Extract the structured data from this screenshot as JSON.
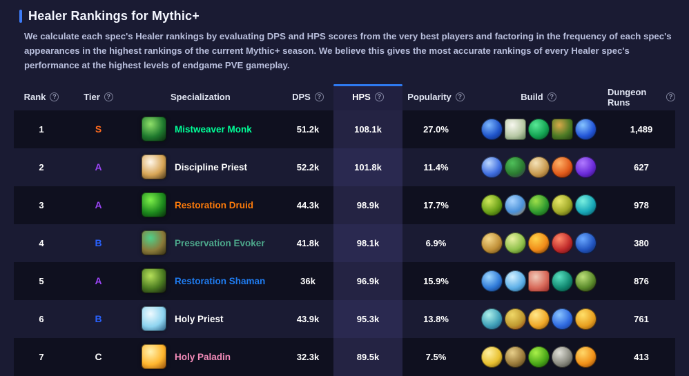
{
  "icons": {
    "help": "?"
  },
  "header": {
    "title": "Healer Rankings for Mythic+",
    "description": "We calculate each spec's Healer rankings by evaluating DPS and HPS scores from the very best players and factoring in the frequency of each spec's appearances in the highest rankings of the current Mythic+ season. We believe this gives the most accurate rankings of every Healer spec's performance at the highest levels of endgame PVE gameplay.",
    "accent_color": "#3d7bf7"
  },
  "table": {
    "columns": [
      {
        "label": "Rank",
        "help": true
      },
      {
        "label": "Tier",
        "help": true
      },
      {
        "label": "Specialization",
        "help": false
      },
      {
        "label": "DPS",
        "help": true
      },
      {
        "label": "HPS",
        "help": true,
        "active": true
      },
      {
        "label": "Popularity",
        "help": true
      },
      {
        "label": "Build",
        "help": true
      },
      {
        "label": "Dungeon Runs",
        "help": true
      }
    ],
    "active_sort_color": "#2e7af0",
    "tier_colors": {
      "S": "#ff6b1e",
      "A": "#9b45f5",
      "B": "#2962ff",
      "C": "#ffffff"
    },
    "rows": [
      {
        "rank": "1",
        "tier": "S",
        "spec": "Mistweaver Monk",
        "spec_color": "#00ff98",
        "spec_icon": {
          "name": "mistweaver-monk-spec-icon",
          "colors": [
            "#8fe06a",
            "#1f7a2e",
            "#07240d"
          ]
        },
        "dps": "51.2k",
        "hps": "108.1k",
        "popularity": "27.0%",
        "runs": "1,489",
        "build_icons": [
          {
            "name": "blue-burst-icon",
            "colors": [
              "#7db8ff",
              "#1f54c9",
              "#0a1c52"
            ],
            "shape": "circle"
          },
          {
            "name": "white-scroll-icon",
            "colors": [
              "#f7f7ef",
              "#b9c9a6",
              "#51714a"
            ],
            "shape": "square"
          },
          {
            "name": "green-swirl-icon",
            "colors": [
              "#58e896",
              "#13a352",
              "#05341c"
            ],
            "shape": "circle"
          },
          {
            "name": "jade-serpent-statue-icon",
            "colors": [
              "#d8a949",
              "#4c7a25",
              "#1e3310"
            ],
            "shape": "square"
          },
          {
            "name": "blue-wind-icon",
            "colors": [
              "#86c4ff",
              "#2356d8",
              "#071a4e"
            ],
            "shape": "circle"
          }
        ]
      },
      {
        "rank": "2",
        "tier": "A",
        "spec": "Discipline Priest",
        "spec_color": "#ffffff",
        "spec_icon": {
          "name": "discipline-priest-spec-icon",
          "colors": [
            "#fff7ea",
            "#d7a556",
            "#3a2a12"
          ]
        },
        "dps": "52.2k",
        "hps": "101.8k",
        "popularity": "11.4%",
        "runs": "627",
        "build_icons": [
          {
            "name": "blue-angel-icon",
            "colors": [
              "#bcd8ff",
              "#3f6ee0",
              "#14245e"
            ],
            "shape": "circle"
          },
          {
            "name": "green-purple-orbit-icon",
            "colors": [
              "#4fc05a",
              "#2a7a30",
              "#401a5e"
            ],
            "shape": "circle"
          },
          {
            "name": "golden-smoke-icon",
            "colors": [
              "#f5e3b8",
              "#c89a50",
              "#5e3a14"
            ],
            "shape": "circle"
          },
          {
            "name": "orange-hand-icon",
            "colors": [
              "#ffb066",
              "#e05a1a",
              "#5a1505"
            ],
            "shape": "circle"
          },
          {
            "name": "purple-fist-icon",
            "colors": [
              "#b07aff",
              "#6a2ad8",
              "#1e0a4a"
            ],
            "shape": "circle"
          }
        ]
      },
      {
        "rank": "3",
        "tier": "A",
        "spec": "Restoration Druid",
        "spec_color": "#ff7c0a",
        "spec_icon": {
          "name": "restoration-druid-spec-icon",
          "colors": [
            "#7df04a",
            "#1d8a1d",
            "#06240a"
          ]
        },
        "dps": "44.3k",
        "hps": "98.9k",
        "popularity": "17.7%",
        "runs": "978",
        "build_icons": [
          {
            "name": "green-sprout-icon",
            "colors": [
              "#cfe85a",
              "#6aa018",
              "#1a3505"
            ],
            "shape": "circle"
          },
          {
            "name": "frost-bloom-icon",
            "colors": [
              "#a8d4ff",
              "#4a90d8",
              "#b87828"
            ],
            "shape": "circle"
          },
          {
            "name": "green-seed-icon",
            "colors": [
              "#9fe04a",
              "#2f9a2f",
              "#0d3a0d"
            ],
            "shape": "circle"
          },
          {
            "name": "yellow-bloom-icon",
            "colors": [
              "#e8e86a",
              "#a0a828",
              "#2a2e08"
            ],
            "shape": "circle"
          },
          {
            "name": "teal-leaf-icon",
            "colors": [
              "#7af0e0",
              "#18a8b8",
              "#083a4a"
            ],
            "shape": "circle"
          }
        ]
      },
      {
        "rank": "4",
        "tier": "B",
        "spec": "Preservation Evoker",
        "spec_color": "#4da98c",
        "spec_icon": {
          "name": "preservation-evoker-spec-icon",
          "colors": [
            "#4fd08a",
            "#8a7a3a",
            "#2e2810"
          ]
        },
        "dps": "41.8k",
        "hps": "98.1k",
        "popularity": "6.9%",
        "runs": "380",
        "build_icons": [
          {
            "name": "golden-orbs-icon",
            "colors": [
              "#f5d88a",
              "#c09038",
              "#4a3310"
            ],
            "shape": "circle"
          },
          {
            "name": "green-ring-icon",
            "colors": [
              "#e8f0a0",
              "#8fc04a",
              "#23400f"
            ],
            "shape": "circle"
          },
          {
            "name": "flame-icon",
            "colors": [
              "#ffd24a",
              "#f08a18",
              "#301505"
            ],
            "shape": "circle"
          },
          {
            "name": "red-claw-orb-icon",
            "colors": [
              "#ff8a6a",
              "#c02a2a",
              "#400a14"
            ],
            "shape": "circle"
          },
          {
            "name": "blue-flame-icon",
            "colors": [
              "#6aa8ff",
              "#2255c0",
              "#091a44"
            ],
            "shape": "circle"
          }
        ]
      },
      {
        "rank": "5",
        "tier": "A",
        "spec": "Restoration Shaman",
        "spec_color": "#1f7cf0",
        "spec_icon": {
          "name": "restoration-shaman-spec-icon",
          "colors": [
            "#b6e05a",
            "#4a7a20",
            "#101010"
          ]
        },
        "dps": "36k",
        "hps": "96.9k",
        "popularity": "15.9%",
        "runs": "876",
        "build_icons": [
          {
            "name": "blue-spiral-icon",
            "colors": [
              "#9fd8ff",
              "#2f7ad8",
              "#0a2050"
            ],
            "shape": "circle"
          },
          {
            "name": "water-wave-icon",
            "colors": [
              "#d2f0ff",
              "#5fb0e8",
              "#15496e"
            ],
            "shape": "circle"
          },
          {
            "name": "red-figure-icon",
            "colors": [
              "#f0cab8",
              "#d86a5a",
              "#8a2020"
            ],
            "shape": "square"
          },
          {
            "name": "teal-vortex-icon",
            "colors": [
              "#5ae0c0",
              "#128a72",
              "#03302a"
            ],
            "shape": "circle"
          },
          {
            "name": "green-blade-icon",
            "colors": [
              "#bde07a",
              "#5a8a2a",
              "#141408"
            ],
            "shape": "circle"
          }
        ]
      },
      {
        "rank": "6",
        "tier": "B",
        "spec": "Holy Priest",
        "spec_color": "#ffffff",
        "spec_icon": {
          "name": "holy-priest-spec-icon",
          "colors": [
            "#eefaff",
            "#8ed4f0",
            "#23557a"
          ]
        },
        "dps": "43.9k",
        "hps": "95.3k",
        "popularity": "13.8%",
        "runs": "761",
        "build_icons": [
          {
            "name": "teal-crystal-icon",
            "colors": [
              "#aef0ea",
              "#3fa0b8",
              "#1a3a66"
            ],
            "shape": "circle"
          },
          {
            "name": "golden-amulet-icon",
            "colors": [
              "#f0d868",
              "#c09a30",
              "#7a1e14"
            ],
            "shape": "circle"
          },
          {
            "name": "golden-burst-icon",
            "colors": [
              "#ffe88a",
              "#f0a828",
              "#6a3a08"
            ],
            "shape": "circle"
          },
          {
            "name": "blue-orbs-icon",
            "colors": [
              "#8ac4ff",
              "#2f6ae0",
              "#122a70"
            ],
            "shape": "circle"
          },
          {
            "name": "golden-kneel-icon",
            "colors": [
              "#ffe06a",
              "#e8a020",
              "#6e3a08"
            ],
            "shape": "circle"
          }
        ]
      },
      {
        "rank": "7",
        "tier": "C",
        "spec": "Holy Paladin",
        "spec_color": "#f48cba",
        "spec_icon": {
          "name": "holy-paladin-spec-icon",
          "colors": [
            "#fff2b0",
            "#ffb62e",
            "#8a4508"
          ]
        },
        "dps": "32.3k",
        "hps": "89.5k",
        "popularity": "7.5%",
        "runs": "413",
        "build_icons": [
          {
            "name": "radiant-burst-icon",
            "colors": [
              "#fff0a0",
              "#e8c030",
              "#5e4408"
            ],
            "shape": "circle"
          },
          {
            "name": "golden-statue-icon",
            "colors": [
              "#e8cf8a",
              "#9a7a3a",
              "#2e2410"
            ],
            "shape": "circle"
          },
          {
            "name": "green-leaves-icon",
            "colors": [
              "#aaf04a",
              "#4aa818",
              "#133a0a"
            ],
            "shape": "circle"
          },
          {
            "name": "silver-hammer-icon",
            "colors": [
              "#e0e0d8",
              "#8a8a80",
              "#2e2e2a"
            ],
            "shape": "circle"
          },
          {
            "name": "orange-sun-icon",
            "colors": [
              "#ffd86a",
              "#f09018",
              "#6a2e05"
            ],
            "shape": "circle"
          }
        ]
      }
    ]
  }
}
